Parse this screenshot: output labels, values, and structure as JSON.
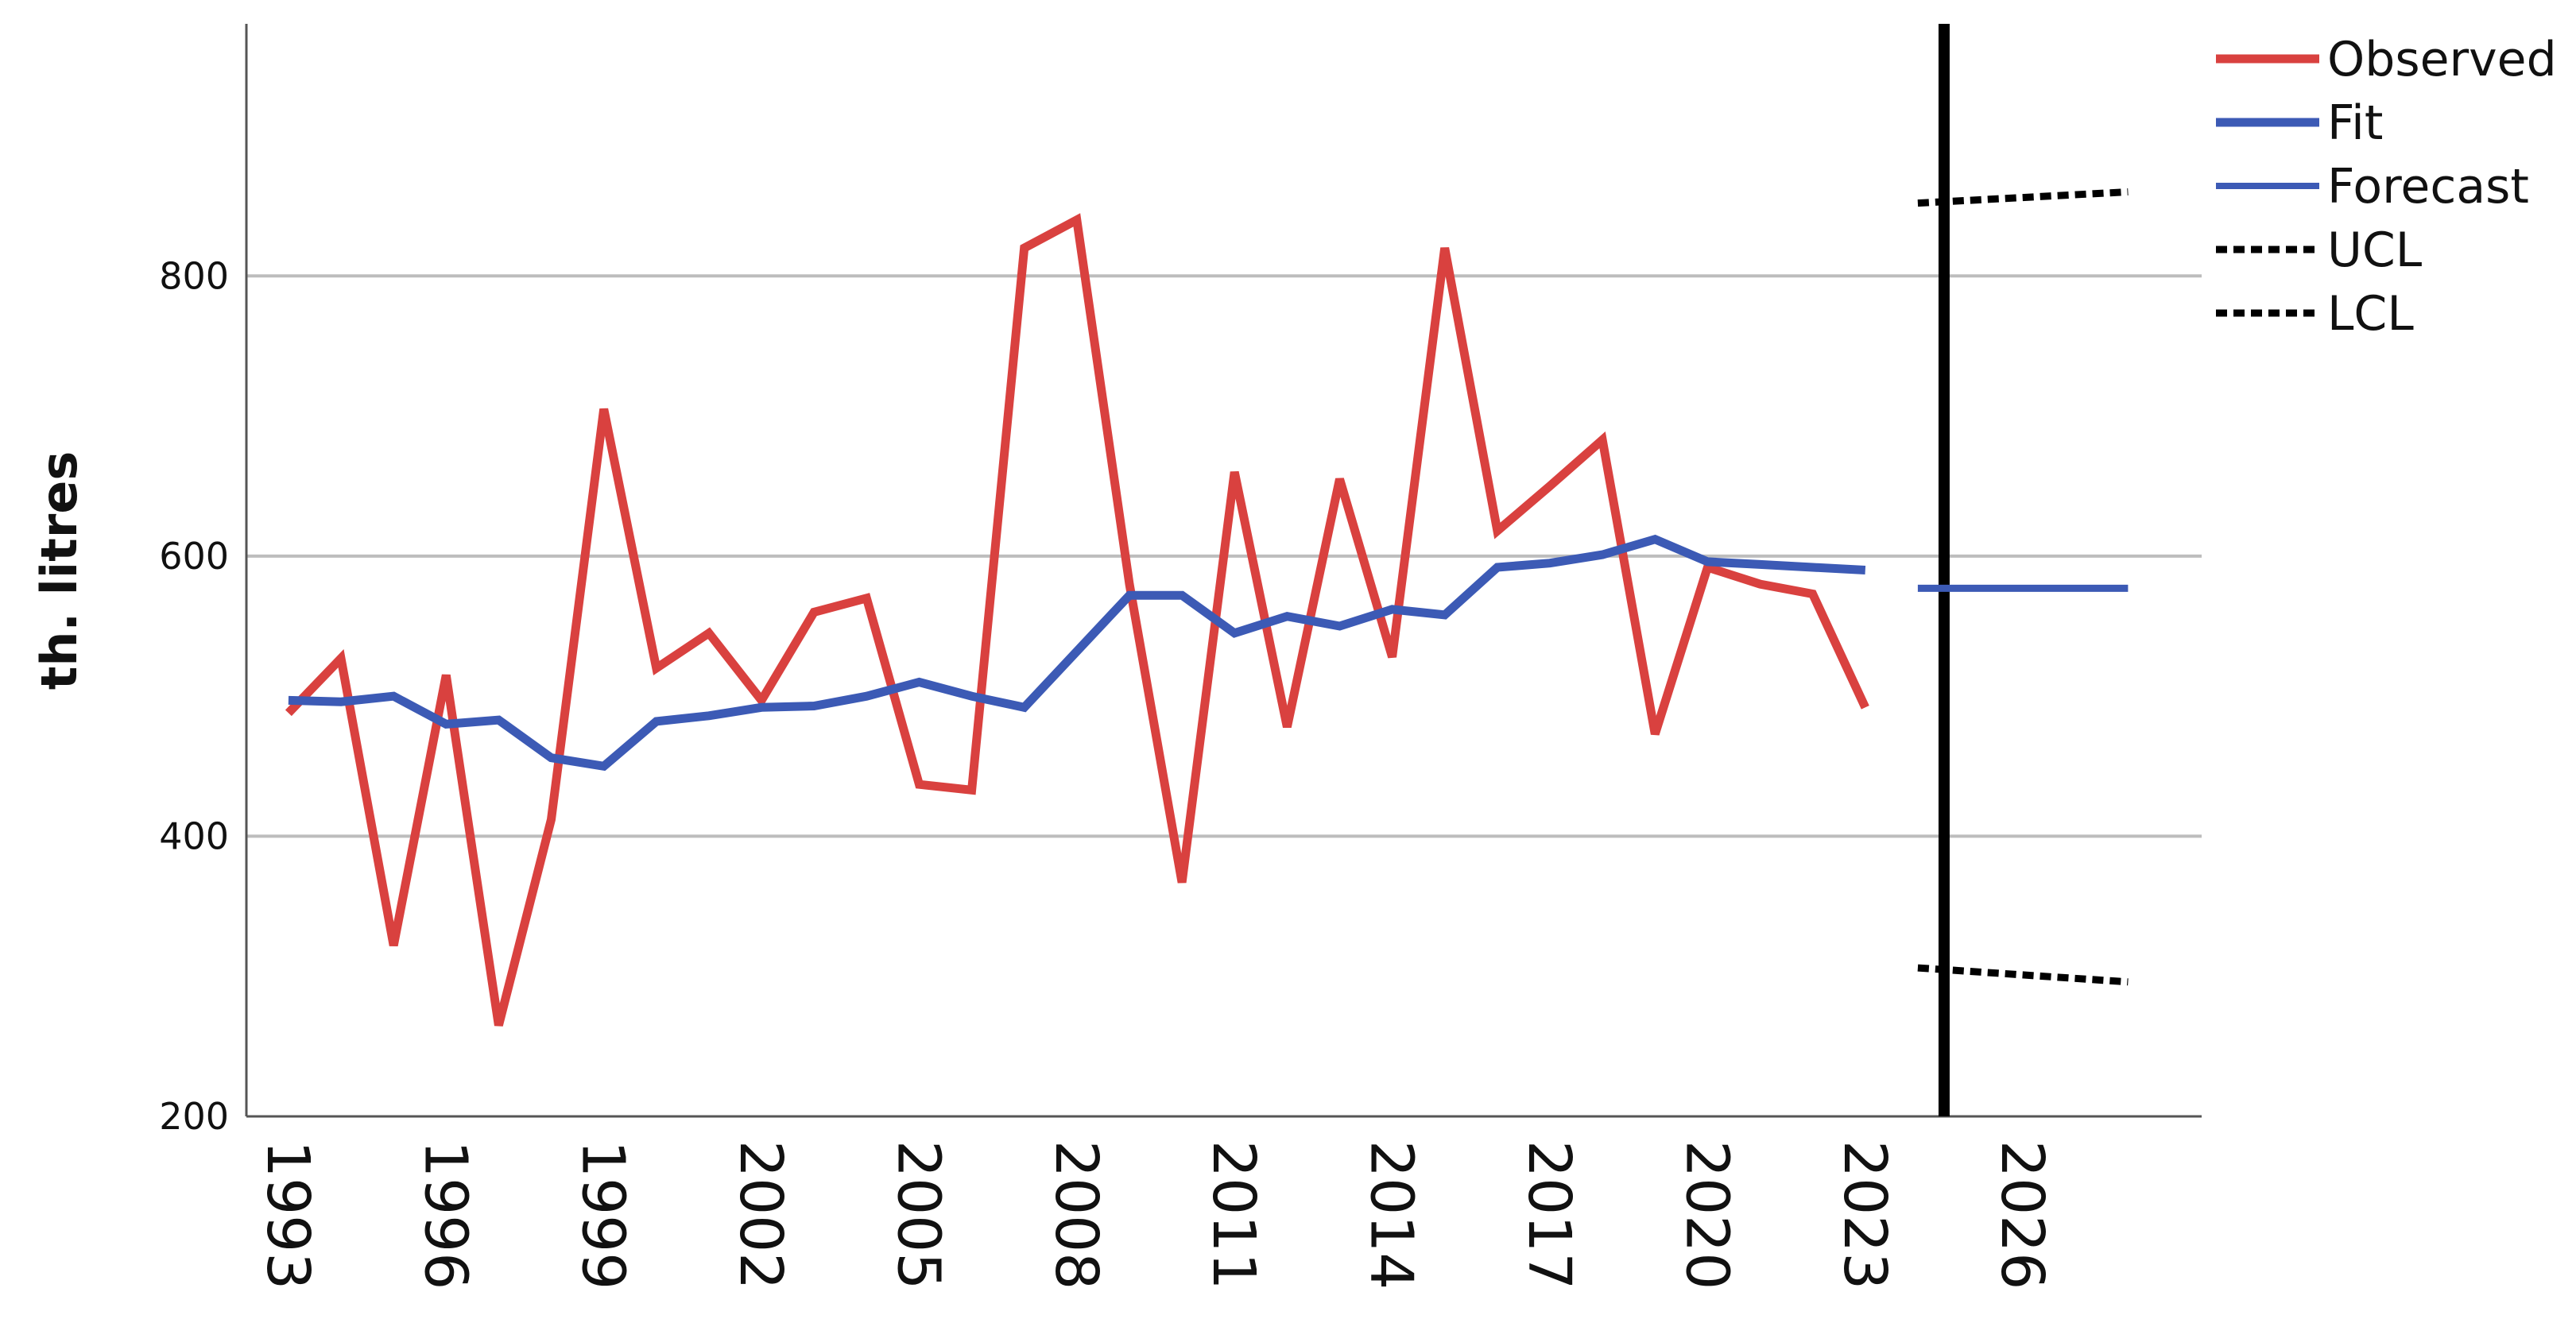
{
  "chart_data": {
    "type": "line",
    "ylabel": "th. litres",
    "xlabel": "",
    "ylim": [
      200,
      980
    ],
    "xlim": [
      1992.2,
      2029.4
    ],
    "yticks": [
      200,
      400,
      600,
      800
    ],
    "xticks": [
      1993,
      1996,
      1999,
      2002,
      2005,
      2008,
      2011,
      2014,
      2017,
      2020,
      2023,
      2026
    ],
    "grid": "horizontal",
    "forecast_start": 2024.5,
    "legend_position": "top-right",
    "series": [
      {
        "name": "Observed",
        "color": "#d9413f",
        "style": "solid",
        "x": [
          1993,
          1994,
          1995,
          1996,
          1997,
          1998,
          1999,
          2000,
          2001,
          2002,
          2003,
          2004,
          2005,
          2006,
          2007,
          2008,
          2009,
          2010,
          2011,
          2012,
          2013,
          2014,
          2015,
          2016,
          2017,
          2018,
          2019,
          2020,
          2021,
          2022,
          2023
        ],
        "y": [
          488,
          527,
          322,
          515,
          265,
          412,
          705,
          520,
          545,
          497,
          560,
          570,
          437,
          433,
          820,
          840,
          580,
          367,
          660,
          478,
          655,
          528,
          820,
          618,
          650,
          683,
          473,
          592,
          580,
          573,
          492
        ]
      },
      {
        "name": "Fit",
        "color": "#3c5ab5",
        "style": "solid",
        "x": [
          1993,
          1994,
          1995,
          1996,
          1997,
          1998,
          1999,
          2000,
          2001,
          2002,
          2003,
          2004,
          2005,
          2006,
          2007,
          2008,
          2009,
          2010,
          2011,
          2012,
          2013,
          2014,
          2015,
          2016,
          2017,
          2018,
          2019,
          2020,
          2021,
          2022,
          2023
        ],
        "y": [
          497,
          496,
          500,
          480,
          483,
          456,
          450,
          482,
          486,
          492,
          493,
          500,
          510,
          500,
          492,
          532,
          572,
          572,
          545,
          557,
          550,
          562,
          558,
          592,
          595,
          601,
          612,
          596,
          594,
          592,
          590
        ]
      },
      {
        "name": "Forecast",
        "color": "#3c5ab5",
        "style": "solid",
        "x": [
          2024,
          2028
        ],
        "y": [
          577,
          577
        ]
      },
      {
        "name": "UCL",
        "color": "#000000",
        "style": "dotted",
        "x": [
          2024,
          2028
        ],
        "y": [
          852,
          860
        ]
      },
      {
        "name": "LCL",
        "color": "#000000",
        "style": "dotted",
        "x": [
          2024,
          2028
        ],
        "y": [
          306,
          296
        ]
      }
    ]
  }
}
